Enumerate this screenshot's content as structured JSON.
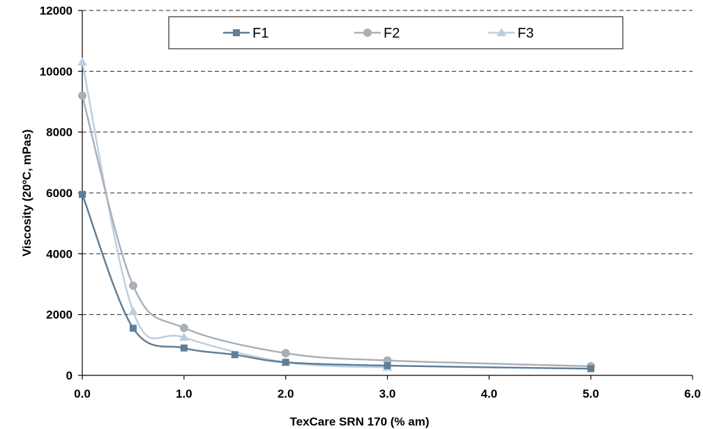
{
  "chart_data": {
    "type": "line",
    "title": "",
    "xlabel": "TexCare SRN 170 (% am)",
    "ylabel": "Viscosity (20ºC, mPas)",
    "xlim": [
      0,
      6
    ],
    "ylim": [
      0,
      12000
    ],
    "xticks": [
      "0.0",
      "1.0",
      "2.0",
      "3.0",
      "4.0",
      "5.0",
      "6.0"
    ],
    "yticks": [
      "0",
      "2000",
      "4000",
      "6000",
      "8000",
      "10000",
      "12000"
    ],
    "grid": "horizontal dashed",
    "legend_position": "top-center",
    "smooth": true,
    "series": [
      {
        "name": "F1",
        "marker": "square",
        "color": "#5f7f98",
        "x": [
          0,
          0.5,
          1.0,
          1.5,
          2.0,
          3.0,
          5.0
        ],
        "y": [
          5950,
          1550,
          900,
          680,
          430,
          320,
          220
        ]
      },
      {
        "name": "F2",
        "marker": "circle",
        "color": "#a9b0ba",
        "x": [
          0,
          0.5,
          1.0,
          2.0,
          3.0,
          5.0
        ],
        "y": [
          9200,
          2950,
          1560,
          730,
          490,
          300
        ]
      },
      {
        "name": "F3",
        "marker": "triangle",
        "color": "#bccfe0",
        "x": [
          0,
          0.5,
          1.0,
          2.0,
          3.0
        ],
        "y": [
          10300,
          2100,
          1250,
          430,
          260
        ]
      }
    ]
  }
}
